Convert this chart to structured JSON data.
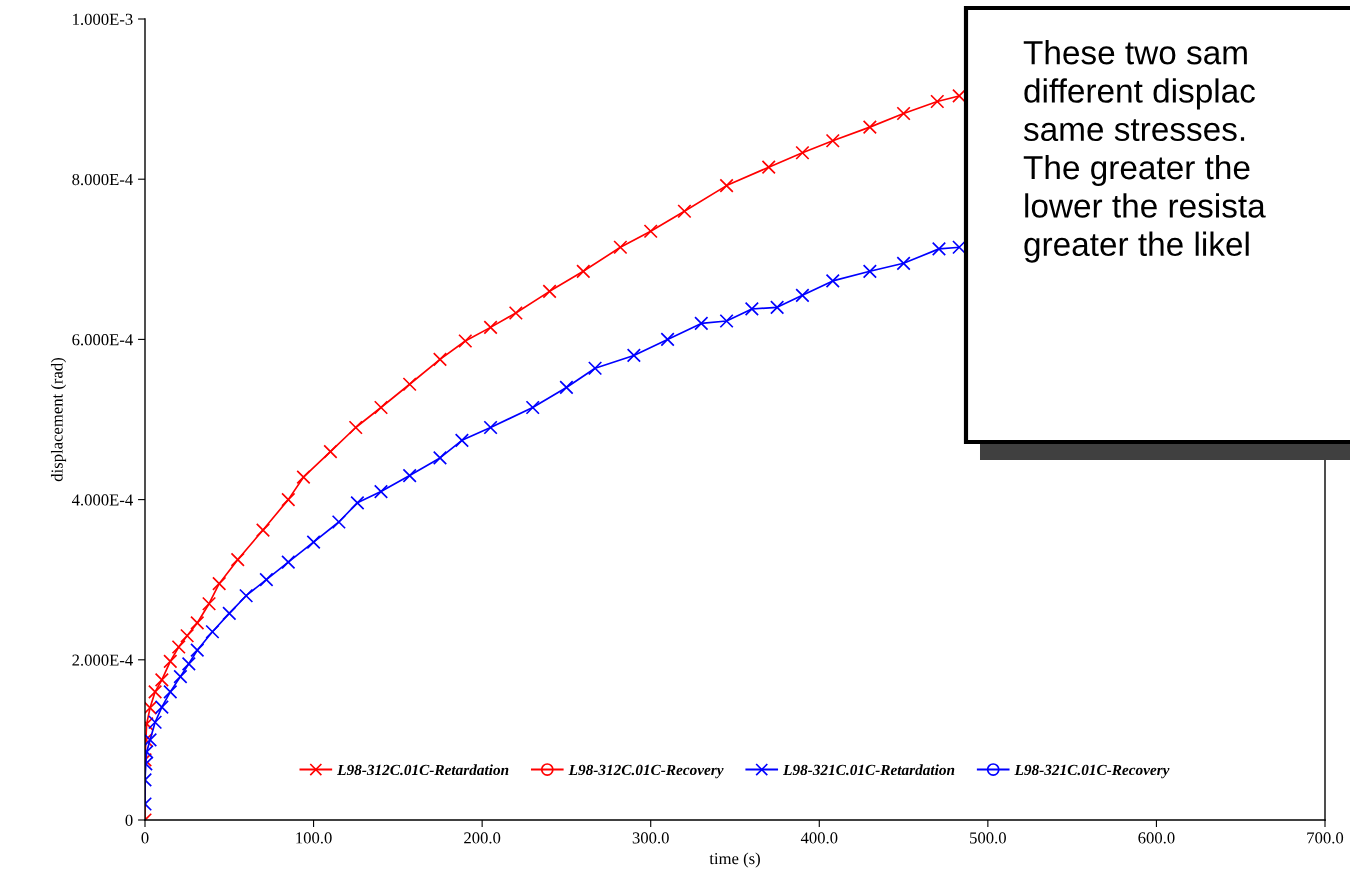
{
  "chart_data": {
    "type": "line",
    "xlabel": "time (s)",
    "ylabel": "displacement (rad)",
    "xlim": [
      0,
      700
    ],
    "ylim": [
      0,
      0.001
    ],
    "xticks": [
      {
        "value": 0,
        "label": "0"
      },
      {
        "value": 100,
        "label": "100.0"
      },
      {
        "value": 200,
        "label": "200.0"
      },
      {
        "value": 300,
        "label": "300.0"
      },
      {
        "value": 400,
        "label": "400.0"
      },
      {
        "value": 500,
        "label": "500.0"
      },
      {
        "value": 600,
        "label": "600.0"
      },
      {
        "value": 700,
        "label": "700.0"
      }
    ],
    "yticks": [
      {
        "value": 0,
        "label": "0"
      },
      {
        "value": 0.0002,
        "label": "2.000E-4"
      },
      {
        "value": 0.0004,
        "label": "4.000E-4"
      },
      {
        "value": 0.0006,
        "label": "6.000E-4"
      },
      {
        "value": 0.0008,
        "label": "8.000E-4"
      },
      {
        "value": 0.001,
        "label": "1.000E-3"
      }
    ],
    "grid": false,
    "legend": "bottom",
    "line_style": "solid",
    "annotations": [
      "These two sam\ndifferent displac\nsame stresses.\nThe greater the\nlower the resista\ngreater the likel"
    ],
    "series": [
      {
        "name": "L98-312C.01C-Retardation",
        "color": "#ff0000",
        "marker": "cross",
        "x": [
          0,
          0,
          0.5,
          1,
          3,
          6,
          10,
          15,
          20,
          25,
          31,
          38,
          44,
          55,
          70,
          85,
          94,
          110,
          125,
          140,
          157,
          175,
          190,
          205,
          220,
          240,
          260,
          282,
          300,
          320,
          345,
          370,
          390,
          408,
          430,
          450,
          470,
          483
        ],
        "values": [
          0,
          7.5e-05,
          0.0001,
          0.00012,
          0.00014,
          0.00016,
          0.000175,
          0.000198,
          0.000216,
          0.00023,
          0.000246,
          0.00027,
          0.000295,
          0.000325,
          0.000362,
          0.0004,
          0.000428,
          0.00046,
          0.00049,
          0.000515,
          0.000544,
          0.000575,
          0.000598,
          0.000615,
          0.000633,
          0.00066,
          0.000685,
          0.000715,
          0.000735,
          0.00076,
          0.000792,
          0.000815,
          0.000833,
          0.000848,
          0.000865,
          0.000882,
          0.000897,
          0.000904
        ]
      },
      {
        "name": "L98-312C.01C-Recovery",
        "color": "#ff0000",
        "marker": "circle"
      },
      {
        "name": "L98-321C.01C-Retardation",
        "color": "#0000ff",
        "marker": "cross",
        "x": [
          0,
          0,
          0.5,
          1,
          3,
          6,
          10,
          15,
          21,
          26,
          31,
          40,
          50,
          60,
          72,
          85,
          100,
          115,
          126,
          140,
          157,
          175,
          188,
          205,
          230,
          250,
          267,
          290,
          310,
          330,
          345,
          360,
          375,
          390,
          408,
          430,
          450,
          471,
          483
        ],
        "values": [
          2e-05,
          5e-05,
          7e-05,
          8.5e-05,
          0.0001,
          0.000122,
          0.000141,
          0.00016,
          0.000179,
          0.000195,
          0.000212,
          0.000235,
          0.000258,
          0.00028,
          0.0003,
          0.000322,
          0.000347,
          0.000372,
          0.000396,
          0.00041,
          0.00043,
          0.000452,
          0.000474,
          0.00049,
          0.000515,
          0.00054,
          0.000564,
          0.00058,
          0.0006,
          0.00062,
          0.000623,
          0.000638,
          0.00064,
          0.000655,
          0.000673,
          0.000685,
          0.000695,
          0.000713,
          0.000715
        ]
      },
      {
        "name": "L98-321C.01C-Recovery",
        "color": "#0000ff",
        "marker": "circle"
      }
    ]
  }
}
